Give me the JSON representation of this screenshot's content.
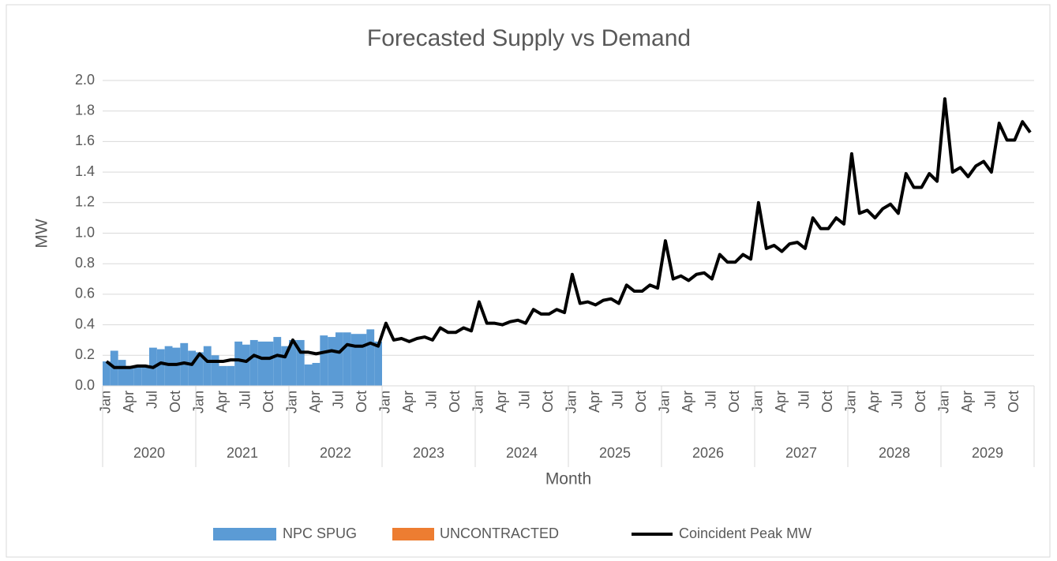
{
  "chart_data": {
    "type": "combo",
    "title": "Forecasted Supply vs Demand",
    "x_label": "Month",
    "y_label": "MW",
    "groups": [
      "2020",
      "2021",
      "2022",
      "2023",
      "2024",
      "2025",
      "2026",
      "2027",
      "2028",
      "2029"
    ],
    "categories": [
      "Jan",
      null,
      null,
      "Apr",
      null,
      null,
      "Jul",
      null,
      null,
      "Oct",
      null,
      null,
      "Jan",
      null,
      null,
      "Apr",
      null,
      null,
      "Jul",
      null,
      null,
      "Oct",
      null,
      null,
      "Jan",
      null,
      null,
      "Apr",
      null,
      null,
      "Jul",
      null,
      null,
      "Oct",
      null,
      null,
      "Jan",
      null,
      null,
      "Apr",
      null,
      null,
      "Jul",
      null,
      null,
      "Oct",
      null,
      null,
      "Jan",
      null,
      null,
      "Apr",
      null,
      null,
      "Jul",
      null,
      null,
      "Oct",
      null,
      null,
      "Jan",
      null,
      null,
      "Apr",
      null,
      null,
      "Jul",
      null,
      null,
      "Oct",
      null,
      null,
      "Jan",
      null,
      null,
      "Apr",
      null,
      null,
      "Jul",
      null,
      null,
      "Oct",
      null,
      null,
      "Jan",
      null,
      null,
      "Apr",
      null,
      null,
      "Jul",
      null,
      null,
      "Oct",
      null,
      null,
      "Jan",
      null,
      null,
      "Apr",
      null,
      null,
      "Jul",
      null,
      null,
      "Oct",
      null,
      null,
      "Jan",
      null,
      null,
      "Apr",
      null,
      null,
      "Jul",
      null,
      null,
      "Oct",
      null,
      null
    ],
    "series": [
      {
        "name": "NPC SPUG",
        "type": "bar",
        "color": "#5b9bd5",
        "values": [
          0.16,
          0.23,
          0.17,
          0.13,
          0.13,
          0.13,
          0.25,
          0.24,
          0.26,
          0.25,
          0.28,
          0.23,
          0.22,
          0.26,
          0.2,
          0.13,
          0.13,
          0.29,
          0.27,
          0.3,
          0.29,
          0.29,
          0.32,
          0.26,
          0.3,
          0.3,
          0.14,
          0.15,
          0.33,
          0.32,
          0.35,
          0.35,
          0.34,
          0.34,
          0.37,
          0.29,
          null,
          null,
          null,
          null,
          null,
          null,
          null,
          null,
          null,
          null,
          null,
          null,
          null,
          null,
          null,
          null,
          null,
          null,
          null,
          null,
          null,
          null,
          null,
          null,
          null,
          null,
          null,
          null,
          null,
          null,
          null,
          null,
          null,
          null,
          null,
          null,
          null,
          null,
          null,
          null,
          null,
          null,
          null,
          null,
          null,
          null,
          null,
          null,
          null,
          null,
          null,
          null,
          null,
          null,
          null,
          null,
          null,
          null,
          null,
          null,
          null,
          null,
          null,
          null,
          null,
          null,
          null,
          null,
          null,
          null,
          null,
          null,
          null,
          null,
          null,
          null,
          null,
          null,
          null,
          null,
          null,
          null,
          null,
          null
        ]
      },
      {
        "name": "UNCONTRACTED",
        "type": "bar",
        "color": "#ed7d31",
        "values": [
          0,
          0,
          0,
          0,
          0,
          0,
          0,
          0,
          0,
          0,
          0,
          0,
          0,
          0,
          0,
          0,
          0,
          0,
          0,
          0,
          0,
          0,
          0,
          0,
          0,
          0,
          0,
          0,
          0,
          0,
          0,
          0,
          0,
          0,
          0,
          0,
          0,
          0,
          0,
          0,
          0,
          0,
          0,
          0,
          0,
          0,
          0,
          0,
          0,
          0,
          0,
          0,
          0,
          0,
          0,
          0,
          0,
          0,
          0,
          0,
          0,
          0,
          0,
          0,
          0,
          0,
          0,
          0,
          0,
          0,
          0,
          0,
          0,
          0,
          0,
          0,
          0,
          0,
          0,
          0,
          0,
          0,
          0,
          0,
          0,
          0,
          0,
          0,
          0,
          0,
          0,
          0,
          0,
          0,
          0,
          0,
          0,
          0,
          0,
          0,
          0,
          0,
          0,
          0,
          0,
          0,
          0,
          0,
          0,
          0,
          0,
          0,
          0,
          0,
          0,
          0,
          0,
          0,
          0,
          0
        ]
      },
      {
        "name": "Coincident Peak MW",
        "type": "line",
        "color": "#000000",
        "values": [
          0.16,
          0.12,
          0.12,
          0.12,
          0.13,
          0.13,
          0.12,
          0.15,
          0.14,
          0.14,
          0.15,
          0.14,
          0.21,
          0.16,
          0.16,
          0.16,
          0.17,
          0.17,
          0.16,
          0.2,
          0.18,
          0.18,
          0.2,
          0.19,
          0.3,
          0.22,
          0.22,
          0.21,
          0.22,
          0.23,
          0.22,
          0.27,
          0.26,
          0.26,
          0.28,
          0.26,
          0.41,
          0.3,
          0.31,
          0.29,
          0.31,
          0.32,
          0.3,
          0.38,
          0.35,
          0.35,
          0.38,
          0.36,
          0.55,
          0.41,
          0.41,
          0.4,
          0.42,
          0.43,
          0.41,
          0.5,
          0.47,
          0.47,
          0.5,
          0.48,
          0.73,
          0.54,
          0.55,
          0.53,
          0.56,
          0.57,
          0.54,
          0.66,
          0.62,
          0.62,
          0.66,
          0.64,
          0.95,
          0.7,
          0.72,
          0.69,
          0.73,
          0.74,
          0.7,
          0.86,
          0.81,
          0.81,
          0.86,
          0.83,
          1.2,
          0.9,
          0.92,
          0.88,
          0.93,
          0.94,
          0.9,
          1.1,
          1.03,
          1.03,
          1.1,
          1.06,
          1.52,
          1.13,
          1.15,
          1.1,
          1.16,
          1.19,
          1.13,
          1.39,
          1.3,
          1.3,
          1.39,
          1.34,
          1.88,
          1.4,
          1.43,
          1.37,
          1.44,
          1.47,
          1.4,
          1.72,
          1.61,
          1.61,
          1.73,
          1.66
        ]
      }
    ],
    "ylim": [
      0,
      2
    ],
    "yticks": [
      {
        "value": 0,
        "label": "0.0"
      },
      0.2,
      0.4,
      0.6,
      0.8,
      {
        "value": 1,
        "label": "1.0"
      },
      1.2,
      1.4,
      1.6,
      1.8,
      {
        "value": 2,
        "label": "2.0"
      }
    ],
    "grid": true,
    "legend": "bottom"
  }
}
